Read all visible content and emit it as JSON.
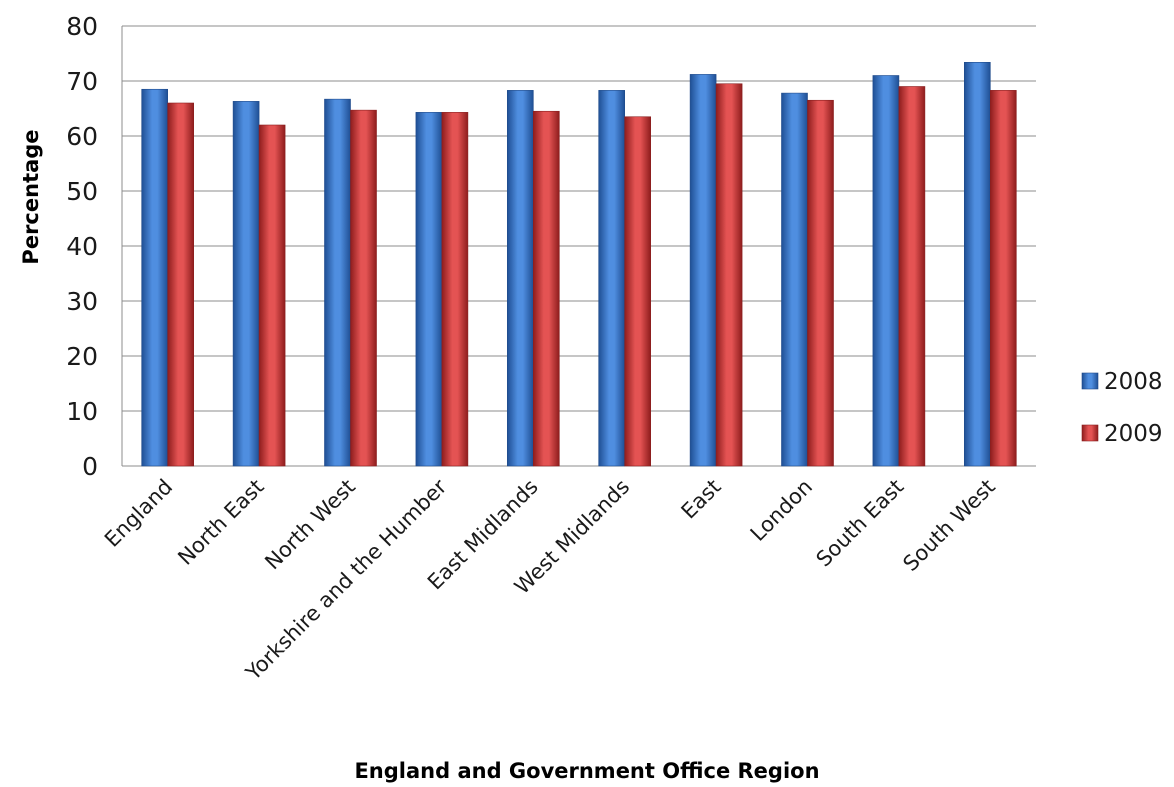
{
  "chart_data": {
    "type": "bar",
    "title": "",
    "xlabel": "England and Government Office Region",
    "ylabel": "Percentage",
    "ylim": [
      0,
      80
    ],
    "yticks": [
      "0",
      "10",
      "20",
      "30",
      "40",
      "50",
      "60",
      "70",
      "80"
    ],
    "grid": true,
    "legend_position": "right",
    "categories": [
      "England",
      "North East",
      "North West",
      "Yorkshire and the Humber",
      "East Midlands",
      "West Midlands",
      "East",
      "London",
      "South East",
      "South West"
    ],
    "series": [
      {
        "name": "2008",
        "color": "#3a78c9",
        "values": [
          68.5,
          66.3,
          66.7,
          64.3,
          68.3,
          68.3,
          71.2,
          67.8,
          71.0,
          73.4
        ]
      },
      {
        "name": "2009",
        "color": "#cf3a3a",
        "values": [
          66.0,
          62.0,
          64.7,
          64.3,
          64.5,
          63.5,
          69.5,
          66.5,
          69.0,
          68.3
        ]
      }
    ]
  }
}
